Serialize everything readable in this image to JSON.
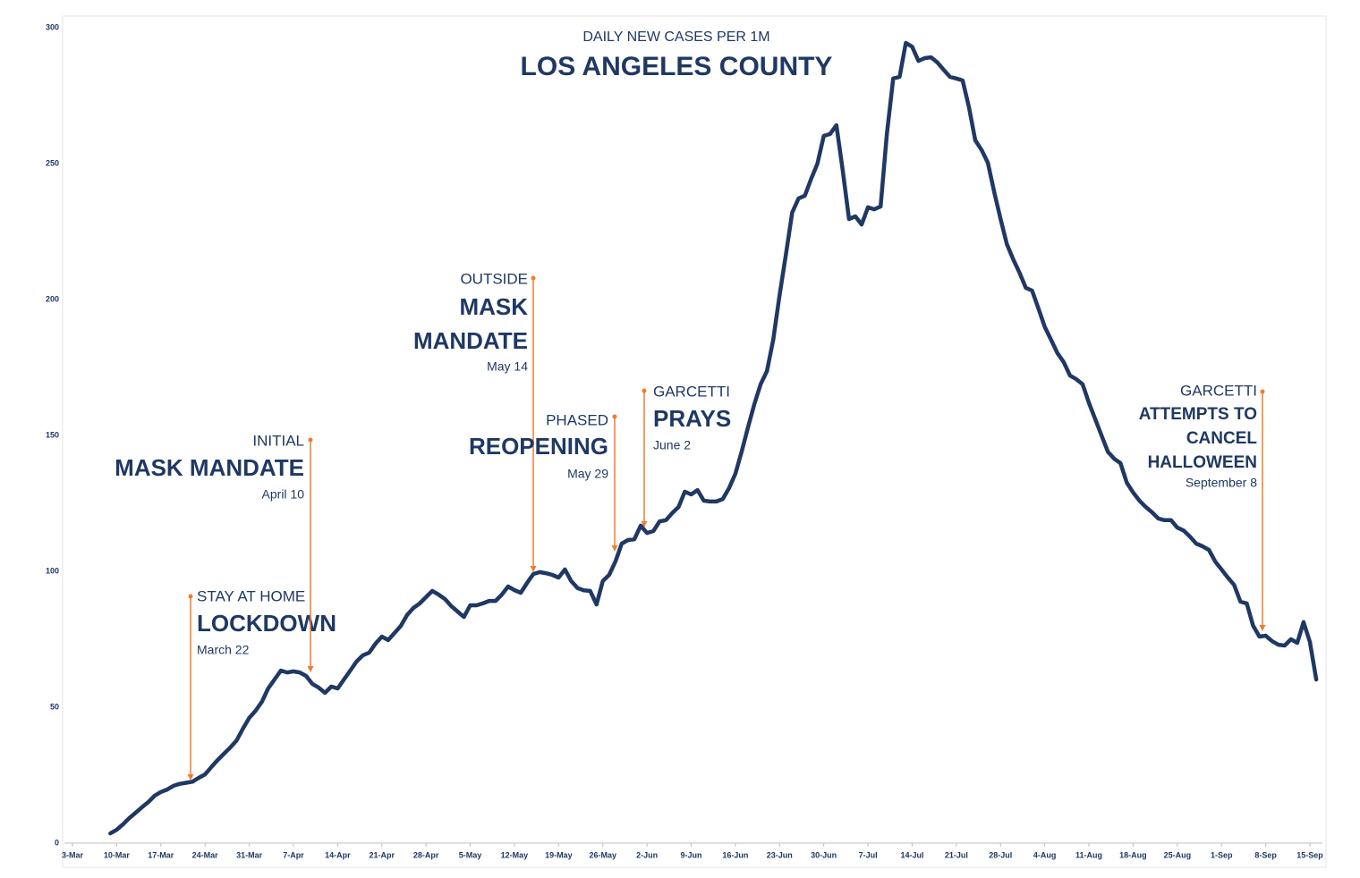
{
  "chart_data": {
    "type": "line",
    "title": "LOS ANGELES COUNTY",
    "subtitle": "DAILY NEW CASES PER 1M",
    "color": "#1f3864",
    "annotation_color": "#ed7d31",
    "ylim": [
      0,
      300
    ],
    "yticks": [
      0,
      50,
      100,
      150,
      200,
      250,
      300
    ],
    "xticks": [
      "3-Mar",
      "10-Mar",
      "17-Mar",
      "24-Mar",
      "31-Mar",
      "7-Apr",
      "14-Apr",
      "21-Apr",
      "28-Apr",
      "5-May",
      "12-May",
      "19-May",
      "26-May",
      "2-Jun",
      "9-Jun",
      "16-Jun",
      "23-Jun",
      "30-Jun",
      "7-Jul",
      "14-Jul",
      "21-Jul",
      "28-Jul",
      "4-Aug",
      "11-Aug",
      "18-Aug",
      "25-Aug",
      "1-Sep",
      "8-Sep",
      "15-Sep"
    ],
    "x": [
      "9-Mar",
      "10-Mar",
      "11-Mar",
      "12-Mar",
      "13-Mar",
      "14-Mar",
      "15-Mar",
      "16-Mar",
      "17-Mar",
      "18-Mar",
      "19-Mar",
      "20-Mar",
      "21-Mar",
      "22-Mar",
      "23-Mar",
      "24-Mar",
      "25-Mar",
      "26-Mar",
      "27-Mar",
      "28-Mar",
      "29-Mar",
      "30-Mar",
      "31-Mar",
      "1-Apr",
      "2-Apr",
      "3-Apr",
      "4-Apr",
      "5-Apr",
      "6-Apr",
      "7-Apr",
      "8-Apr",
      "9-Apr",
      "10-Apr",
      "11-Apr",
      "12-Apr",
      "13-Apr",
      "14-Apr",
      "15-Apr",
      "16-Apr",
      "17-Apr",
      "18-Apr",
      "19-Apr",
      "20-Apr",
      "21-Apr",
      "22-Apr",
      "23-Apr",
      "24-Apr",
      "25-Apr",
      "26-Apr",
      "27-Apr",
      "28-Apr",
      "29-Apr",
      "30-Apr",
      "1-May",
      "2-May",
      "3-May",
      "4-May",
      "5-May",
      "6-May",
      "7-May",
      "8-May",
      "9-May",
      "10-May",
      "11-May",
      "12-May",
      "13-May",
      "14-May",
      "15-May",
      "16-May",
      "17-May",
      "18-May",
      "19-May",
      "20-May",
      "21-May",
      "22-May",
      "23-May",
      "24-May",
      "25-May",
      "26-May",
      "27-May",
      "28-May",
      "29-May",
      "30-May",
      "31-May",
      "1-Jun",
      "2-Jun",
      "3-Jun",
      "4-Jun",
      "5-Jun",
      "6-Jun",
      "7-Jun",
      "8-Jun",
      "9-Jun",
      "10-Jun",
      "11-Jun",
      "12-Jun",
      "13-Jun",
      "14-Jun",
      "15-Jun",
      "16-Jun",
      "17-Jun",
      "18-Jun",
      "19-Jun",
      "20-Jun",
      "21-Jun",
      "22-Jun",
      "23-Jun",
      "24-Jun",
      "25-Jun",
      "26-Jun",
      "27-Jun",
      "28-Jun",
      "29-Jun",
      "30-Jun",
      "1-Jul",
      "2-Jul",
      "3-Jul",
      "4-Jul",
      "5-Jul",
      "6-Jul",
      "7-Jul",
      "8-Jul",
      "9-Jul",
      "10-Jul",
      "11-Jul",
      "12-Jul",
      "13-Jul",
      "14-Jul",
      "15-Jul",
      "16-Jul",
      "17-Jul",
      "18-Jul",
      "19-Jul",
      "20-Jul",
      "21-Jul",
      "22-Jul",
      "23-Jul",
      "24-Jul",
      "25-Jul",
      "26-Jul",
      "27-Jul",
      "28-Jul",
      "29-Jul",
      "30-Jul",
      "31-Jul",
      "1-Aug",
      "2-Aug",
      "3-Aug",
      "4-Aug",
      "5-Aug",
      "6-Aug",
      "7-Aug",
      "8-Aug",
      "9-Aug",
      "10-Aug",
      "11-Aug",
      "12-Aug",
      "13-Aug",
      "14-Aug",
      "15-Aug",
      "16-Aug",
      "17-Aug",
      "18-Aug",
      "19-Aug",
      "20-Aug",
      "21-Aug",
      "22-Aug",
      "23-Aug",
      "24-Aug",
      "25-Aug",
      "26-Aug",
      "27-Aug",
      "28-Aug",
      "29-Aug",
      "30-Aug",
      "31-Aug",
      "1-Sep",
      "2-Sep",
      "3-Sep",
      "4-Sep",
      "5-Sep",
      "6-Sep",
      "7-Sep",
      "8-Sep",
      "9-Sep",
      "10-Sep",
      "11-Sep",
      "12-Sep",
      "13-Sep",
      "14-Sep",
      "15-Sep",
      "16-Sep"
    ],
    "values": [
      3.6,
      4.9,
      6.9,
      9.2,
      11.2,
      13.2,
      15.1,
      17.4,
      18.8,
      19.7,
      21.1,
      21.8,
      22.2,
      22.6,
      24,
      25.3,
      28,
      30.6,
      32.9,
      35.2,
      37.8,
      42.1,
      46.1,
      48.7,
      52,
      56.9,
      60.2,
      63.5,
      62.8,
      63.2,
      62.8,
      61.5,
      58.6,
      57.2,
      55.3,
      57.6,
      56.9,
      60.2,
      63.5,
      66.8,
      69.1,
      70.1,
      73.4,
      76,
      74.7,
      77.3,
      79.9,
      83.9,
      86.5,
      88.2,
      90.5,
      92.8,
      91.4,
      89.8,
      87.2,
      85.2,
      83.2,
      87.5,
      87.5,
      88.2,
      89.1,
      89.1,
      91.4,
      94.4,
      93.1,
      92.1,
      95.7,
      99,
      99.7,
      99.3,
      98.7,
      97.7,
      100.7,
      96.4,
      93.8,
      93,
      92.8,
      87.8,
      96.4,
      98.7,
      103.6,
      110.2,
      111.5,
      111.8,
      116.8,
      114.1,
      114.8,
      118.4,
      118.8,
      121.4,
      123.7,
      129.3,
      128.3,
      129.9,
      126,
      125.7,
      125.7,
      126.6,
      130.6,
      135.9,
      144,
      153,
      161.5,
      168.8,
      173.7,
      185.2,
      201.6,
      216.4,
      232,
      237.2,
      238.2,
      244.4,
      250,
      260.2,
      260.9,
      264.1,
      247.7,
      229.6,
      230.6,
      227.6,
      233.9,
      233.2,
      234.2,
      260.9,
      281.3,
      281.9,
      294.4,
      293,
      287.8,
      288.8,
      289.1,
      287.2,
      284.5,
      281.9,
      281.3,
      280.6,
      270.7,
      258.6,
      255,
      250.3,
      239.5,
      229.6,
      220.4,
      214.8,
      209.9,
      204.3,
      203.3,
      196.7,
      190,
      185.2,
      180.3,
      177,
      172,
      170.7,
      168.8,
      162,
      156,
      150,
      144,
      141.4,
      139.8,
      132.6,
      129,
      126,
      123.7,
      121.7,
      119.4,
      118.8,
      118.8,
      116.1,
      115,
      112.8,
      110.2,
      109.2,
      107.9,
      103.6,
      100.7,
      97.7,
      95,
      88.8,
      88.2,
      80,
      76,
      76.3,
      74.3,
      73,
      72.7,
      75,
      73.7,
      81.3,
      74,
      60.2
    ],
    "annotations": [
      {
        "header": "STAY AT HOME",
        "headline": [
          "LOCKDOWN"
        ],
        "date": "March 22"
      },
      {
        "header": "INITIAL",
        "headline": [
          "MASK MANDATE"
        ],
        "date": "April 10"
      },
      {
        "header": "OUTSIDE",
        "headline": [
          "MASK",
          "MANDATE"
        ],
        "date": "May 14"
      },
      {
        "header": "PHASED",
        "headline": [
          "REOPENING"
        ],
        "date": "May 29"
      },
      {
        "header": "GARCETTI",
        "headline": [
          "PRAYS"
        ],
        "date": "June 2"
      },
      {
        "header": "GARCETTI",
        "headline": [
          "ATTEMPTS TO",
          "CANCEL",
          "HALLOWEEN"
        ],
        "date": "September 8"
      }
    ]
  }
}
